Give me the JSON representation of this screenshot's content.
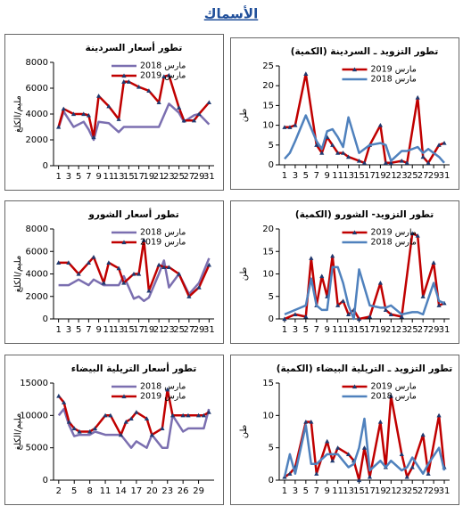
{
  "header": {
    "title": "الأسماك"
  },
  "chart_data": [
    {
      "type": "line",
      "title": "تطور أسعار السردينة",
      "y_label": "مليم/الكلغ",
      "x": [
        1,
        2,
        4,
        6,
        7,
        8,
        9,
        11,
        13,
        14,
        15,
        17,
        19,
        21,
        22,
        23,
        25,
        26,
        28,
        29,
        31
      ],
      "xlim": [
        0,
        32
      ],
      "xticks": [
        1,
        3,
        5,
        7,
        9,
        11,
        13,
        15,
        17,
        19,
        21,
        23,
        25,
        27,
        29,
        31
      ],
      "ylim": [
        0,
        8000
      ],
      "yticks": [
        0,
        2000,
        4000,
        6000,
        8000
      ],
      "series": [
        {
          "name": "مارس 2018",
          "color": "#7b6fb0",
          "values": [
            2900,
            4200,
            3000,
            3400,
            2800,
            2000,
            3400,
            3300,
            2600,
            3000,
            3000,
            3000,
            3000,
            3000,
            3900,
            4800,
            4100,
            3400,
            3900,
            4000,
            3200
          ]
        },
        {
          "name": "مارس 2019",
          "color": "#c00000",
          "marker": "triangle",
          "values": [
            3000,
            4400,
            4000,
            4000,
            3900,
            2200,
            5400,
            4600,
            3600,
            6500,
            6500,
            6100,
            5800,
            4900,
            6900,
            7000,
            4500,
            3500,
            3500,
            4000,
            4900
          ]
        }
      ]
    },
    {
      "type": "line",
      "title": "تطور التزويد ـ السردينة (الكمية)",
      "y_label": "طن",
      "x": [
        1,
        2,
        3,
        5,
        7,
        8,
        9,
        10,
        11,
        12,
        13,
        15,
        16,
        17,
        19,
        20,
        21,
        23,
        24,
        26,
        27,
        28,
        30,
        31
      ],
      "xlim": [
        0,
        32
      ],
      "xticks": [
        1,
        3,
        5,
        7,
        9,
        11,
        13,
        15,
        17,
        19,
        21,
        23,
        25,
        27,
        29,
        31
      ],
      "ylim": [
        0,
        25
      ],
      "yticks": [
        0,
        5,
        10,
        15,
        20,
        25
      ],
      "series": [
        {
          "name": "مارس 2019",
          "color": "#c00000",
          "marker": "triangle",
          "values": [
            9.5,
            9.5,
            10,
            23,
            5,
            3,
            7,
            5,
            3,
            3,
            2,
            1,
            0.5,
            5,
            10,
            0.5,
            0.5,
            1,
            0.5,
            17,
            2,
            0.5,
            5,
            5.5
          ]
        },
        {
          "name": "مارس 2018",
          "color": "#4f81bd",
          "values": [
            1.5,
            3,
            6,
            12.5,
            6,
            4,
            8.5,
            9,
            7,
            4.5,
            12,
            3,
            4,
            5,
            5.5,
            5,
            1,
            3.5,
            3.5,
            4.5,
            3,
            4,
            2,
            0.5
          ]
        }
      ]
    },
    {
      "type": "line",
      "title": "تطور أسعار الشورو",
      "y_label": "مليم/الكلغ",
      "x": [
        1,
        3,
        5,
        7,
        8,
        10,
        11,
        13,
        14,
        16,
        17,
        18,
        19,
        21,
        22,
        23,
        25,
        27,
        29,
        31
      ],
      "xlim": [
        0,
        32
      ],
      "xticks": [
        1,
        3,
        5,
        7,
        9,
        11,
        13,
        15,
        17,
        19,
        21,
        23,
        25,
        27,
        29,
        31
      ],
      "ylim": [
        0,
        8000
      ],
      "yticks": [
        0,
        2000,
        4000,
        6000,
        8000
      ],
      "series": [
        {
          "name": "مارس 2018",
          "color": "#7b6fb0",
          "values": [
            3000,
            3000,
            3500,
            3000,
            3500,
            3000,
            3000,
            3000,
            3800,
            1800,
            2000,
            1600,
            1900,
            4000,
            5200,
            2800,
            4000,
            2200,
            3200,
            5400
          ]
        },
        {
          "name": "مارس 2019",
          "color": "#c00000",
          "marker": "triangle",
          "values": [
            5000,
            5000,
            4000,
            5000,
            5500,
            3200,
            5000,
            4500,
            3200,
            4000,
            4000,
            7000,
            2500,
            4800,
            4600,
            4600,
            4000,
            2000,
            2800,
            4800
          ]
        }
      ]
    },
    {
      "type": "line",
      "title": "تطور التزويد- الشورو (الكمية)",
      "y_label": "طن",
      "x": [
        1,
        3,
        5,
        6,
        7,
        8,
        9,
        10,
        11,
        12,
        13,
        14,
        15,
        17,
        19,
        20,
        21,
        23,
        25,
        26,
        27,
        29,
        30,
        31
      ],
      "xlim": [
        0,
        32
      ],
      "xticks": [
        1,
        3,
        5,
        7,
        9,
        11,
        13,
        15,
        17,
        19,
        21,
        23,
        25,
        27,
        29,
        31
      ],
      "ylim": [
        0,
        20
      ],
      "yticks": [
        0,
        5,
        10,
        15,
        20
      ],
      "series": [
        {
          "name": "مارس 2019",
          "color": "#c00000",
          "marker": "triangle",
          "values": [
            0,
            1,
            0.5,
            13.5,
            3,
            9.5,
            5,
            14,
            3,
            4,
            1,
            2,
            0,
            0.5,
            8,
            2,
            1,
            0.5,
            19,
            18.5,
            5,
            12.5,
            3,
            3.5
          ]
        },
        {
          "name": "مارس 2018",
          "color": "#4f81bd",
          "values": [
            1,
            2,
            3,
            9,
            3,
            2,
            2,
            11.5,
            11.5,
            8,
            3,
            0,
            11,
            3,
            2.5,
            2.5,
            3,
            1,
            1.5,
            1.5,
            1,
            8,
            4,
            3.5
          ]
        }
      ]
    },
    {
      "type": "line",
      "title": "تطور أسعار التريلية البيضاء",
      "y_label": "مليم/الكلغ",
      "x": [
        2,
        3,
        4,
        5,
        6,
        8,
        9,
        11,
        12,
        14,
        15,
        16,
        17,
        19,
        20,
        22,
        23,
        24,
        26,
        27,
        29,
        30,
        31
      ],
      "xlim": [
        1,
        32
      ],
      "xticks": [
        2,
        5,
        8,
        11,
        14,
        17,
        20,
        23,
        26,
        29
      ],
      "ylim": [
        0,
        15000
      ],
      "yticks": [
        0,
        5000,
        10000,
        15000
      ],
      "series": [
        {
          "name": "مارس 2018",
          "color": "#7b6fb0",
          "values": [
            10000,
            11000,
            8500,
            6800,
            7000,
            7000,
            7500,
            7000,
            7000,
            7000,
            6000,
            5000,
            6000,
            5000,
            7000,
            5000,
            5000,
            10000,
            7500,
            8000,
            8000,
            8000,
            11000
          ]
        },
        {
          "name": "مارس 2019",
          "color": "#c00000",
          "marker": "triangle",
          "values": [
            13000,
            12000,
            9000,
            8000,
            7500,
            7500,
            8000,
            10000,
            10000,
            7000,
            9000,
            9500,
            10500,
            9500,
            7000,
            8000,
            14000,
            10000,
            10000,
            10000,
            10000,
            10000,
            10500
          ]
        }
      ]
    },
    {
      "type": "line",
      "title": "تطور التزويد ـ التريلية البيضاء (الكمية)",
      "y_label": "طن",
      "x": [
        1,
        2,
        3,
        5,
        6,
        7,
        9,
        10,
        11,
        13,
        14,
        15,
        16,
        17,
        19,
        20,
        21,
        23,
        24,
        25,
        27,
        28,
        30,
        31
      ],
      "xlim": [
        0,
        32
      ],
      "xticks": [
        1,
        3,
        5,
        7,
        9,
        11,
        13,
        15,
        17,
        19,
        21,
        23,
        25,
        27,
        29,
        31
      ],
      "ylim": [
        0,
        15
      ],
      "yticks": [
        0,
        5,
        10,
        15
      ],
      "series": [
        {
          "name": "مارس 2019",
          "color": "#c00000",
          "marker": "triangle",
          "values": [
            0.5,
            1,
            2,
            9,
            9,
            1,
            6,
            3,
            5,
            4,
            3,
            0,
            5,
            0.5,
            9,
            2,
            13,
            4,
            0.5,
            2,
            7,
            1,
            10,
            2
          ]
        },
        {
          "name": "مارس 2018",
          "color": "#4f81bd",
          "values": [
            0.5,
            4,
            1,
            8.5,
            2.5,
            2.5,
            4,
            4,
            4,
            2,
            2.5,
            5,
            9.5,
            1.5,
            3,
            2,
            3,
            1.5,
            2,
            3.5,
            1,
            2.5,
            5,
            1.5
          ]
        }
      ]
    }
  ]
}
